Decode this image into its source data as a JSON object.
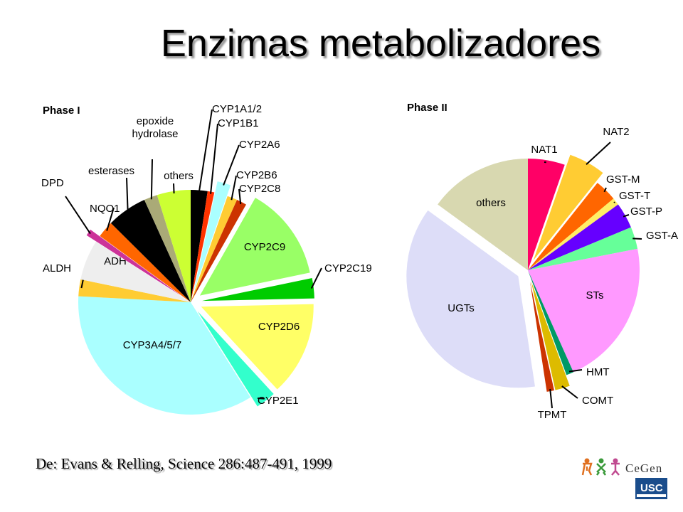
{
  "title": "Enzimas metabolizadores",
  "citation": "De: Evans & Relling, Science 286:487-491, 1999",
  "logos": {
    "cegen": "CeGen",
    "usc": "USC"
  },
  "chart_data": [
    {
      "type": "pie",
      "title": "Phase I",
      "slices": [
        {
          "label": "CYP1A1/2",
          "value": 2.5,
          "color": "#000000",
          "exploded": false
        },
        {
          "label": "CYP1B1",
          "value": 1.0,
          "color": "#ff3300",
          "exploded": false
        },
        {
          "label": "CYP2A6",
          "value": 2.0,
          "color": "#aaffff",
          "exploded": true
        },
        {
          "label": "CYP2B6",
          "value": 1.5,
          "color": "#ffcc33",
          "exploded": false
        },
        {
          "label": "CYP2C8",
          "value": 1.5,
          "color": "#cc3300",
          "exploded": false
        },
        {
          "label": "CYP2C9",
          "value": 14,
          "color": "#99ff66",
          "exploded": true
        },
        {
          "label": "CYP2C19",
          "value": 3,
          "color": "#00cc00",
          "exploded": true
        },
        {
          "label": "CYP2D6",
          "value": 14,
          "color": "#ffff66",
          "exploded": true
        },
        {
          "label": "CYP2E1",
          "value": 3,
          "color": "#33ffcc",
          "exploded": true
        },
        {
          "label": "CYP3A4/5/7",
          "value": 36,
          "color": "#aaffff",
          "exploded": false
        },
        {
          "label": "ALDH",
          "value": 2.5,
          "color": "#ffcc33",
          "exploded": false
        },
        {
          "label": "ADH",
          "value": 6,
          "color": "#eeeeee",
          "exploded": false
        },
        {
          "label": "DPD",
          "value": 1.0,
          "color": "#cc3399",
          "exploded": true
        },
        {
          "label": "NQO1",
          "value": 2.5,
          "color": "#ff6600",
          "exploded": false
        },
        {
          "label": "esterases",
          "value": 6,
          "color": "#000000",
          "exploded": false
        },
        {
          "label": "epoxide hydrolase",
          "value": 2.0,
          "color": "#aaaa77",
          "exploded": false
        },
        {
          "label": "others",
          "value": 5,
          "color": "#ccff33",
          "exploded": false
        }
      ]
    },
    {
      "type": "pie",
      "title": "Phase II",
      "slices": [
        {
          "label": "NAT1",
          "value": 5,
          "color": "#ff0066",
          "exploded": false
        },
        {
          "label": "NAT2",
          "value": 5,
          "color": "#ffcc33",
          "exploded": true
        },
        {
          "label": "GST-M",
          "value": 3,
          "color": "#ff6600",
          "exploded": false
        },
        {
          "label": "GST-T",
          "value": 1,
          "color": "#ffee66",
          "exploded": false
        },
        {
          "label": "GST-P",
          "value": 3.5,
          "color": "#6600ff",
          "exploded": false
        },
        {
          "label": "GST-A",
          "value": 3,
          "color": "#66ff99",
          "exploded": false
        },
        {
          "label": "STs",
          "value": 20,
          "color": "#ff99ff",
          "exploded": false
        },
        {
          "label": "HMT",
          "value": 1,
          "color": "#009966",
          "exploded": false
        },
        {
          "label": "COMT",
          "value": 2,
          "color": "#ddbb00",
          "exploded": true
        },
        {
          "label": "TPMT",
          "value": 1,
          "color": "#cc3300",
          "exploded": true
        },
        {
          "label": "UGTs",
          "value": 35,
          "color": "#ddddf8",
          "exploded": true
        },
        {
          "label": "others",
          "value": 14,
          "color": "#d8d8b0",
          "exploded": false
        }
      ]
    }
  ]
}
